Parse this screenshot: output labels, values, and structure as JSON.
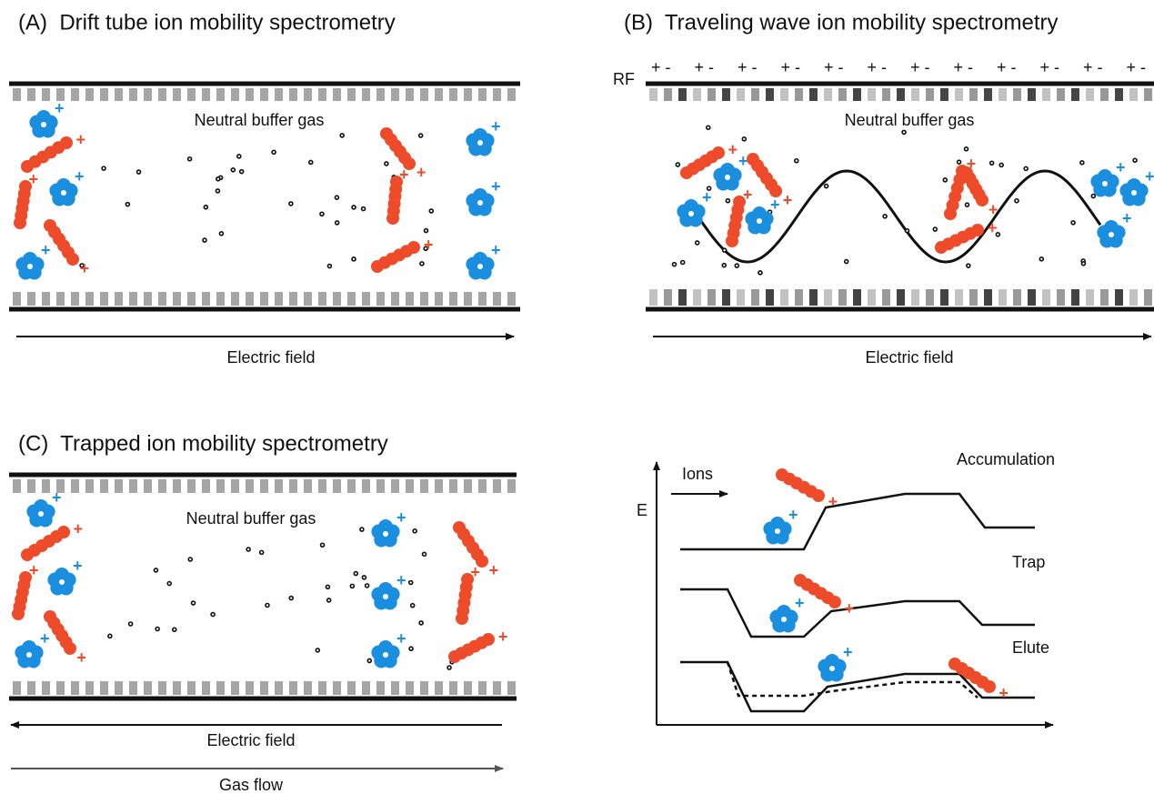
{
  "panel_a": {
    "title": "(A)  Drift tube ion mobility spectrometry",
    "gas_label": "Neutral buffer gas",
    "field_label": "Electric field"
  },
  "panel_b": {
    "title": "(B)  Traveling wave ion mobility spectrometry",
    "rf_label": "RF",
    "rf_sign": "+ -",
    "gas_label": "Neutral buffer gas",
    "field_label": "Electric field"
  },
  "panel_c": {
    "title": "(C)  Trapped ion mobility spectrometry",
    "gas_label": "Neutral buffer gas",
    "field_label": "Electric field",
    "flow_label": "Gas flow"
  },
  "panel_d": {
    "axis_label": "E",
    "ions_label": "Ions",
    "stages": [
      "Accumulation",
      "Trap",
      "Elute"
    ]
  },
  "ion_charge": "+"
}
